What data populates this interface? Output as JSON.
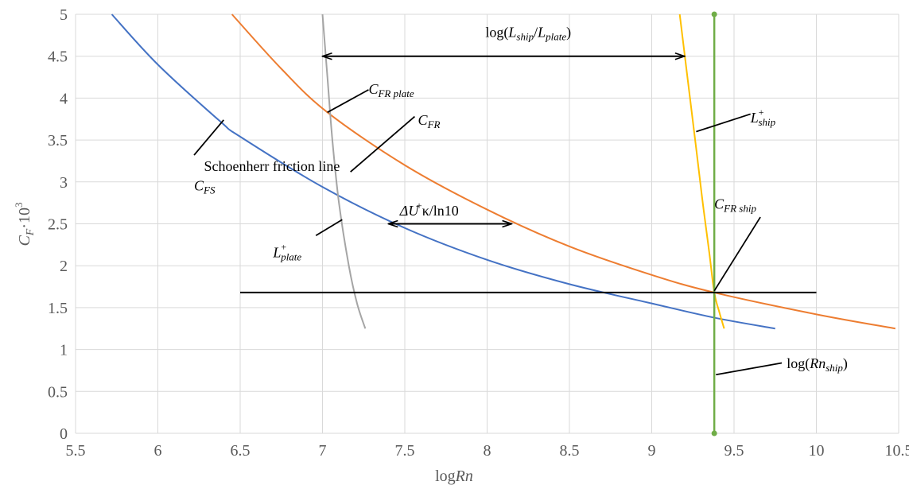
{
  "chart_data": {
    "type": "line",
    "xlabel": "logRn",
    "ylabel": "C_F·10³",
    "xlim": [
      5.5,
      10.5
    ],
    "ylim": [
      0,
      5
    ],
    "xticks": [
      "5.5",
      "6",
      "6.5",
      "7",
      "7.5",
      "8",
      "8.5",
      "9",
      "9.5",
      "10",
      "10.5"
    ],
    "yticks": [
      "0",
      "0.5",
      "1",
      "1.5",
      "2",
      "2.5",
      "3",
      "3.5",
      "4",
      "4.5",
      "5"
    ],
    "grid": true,
    "series": [
      {
        "name": "Schoenherr friction line C_FS",
        "color": "#4472C4",
        "points": [
          [
            5.72,
            5.0
          ],
          [
            6.0,
            4.4
          ],
          [
            6.38,
            3.72
          ],
          [
            6.5,
            3.54
          ],
          [
            7.0,
            2.94
          ],
          [
            7.5,
            2.45
          ],
          [
            8.0,
            2.07
          ],
          [
            8.5,
            1.78
          ],
          [
            9.0,
            1.55
          ],
          [
            9.38,
            1.38
          ],
          [
            9.75,
            1.25
          ]
        ]
      },
      {
        "name": "C_FR",
        "color": "#ED7D31",
        "points": [
          [
            6.45,
            5.0
          ],
          [
            6.75,
            4.35
          ],
          [
            7.03,
            3.83
          ],
          [
            7.5,
            3.2
          ],
          [
            8.0,
            2.67
          ],
          [
            8.5,
            2.23
          ],
          [
            9.0,
            1.89
          ],
          [
            9.38,
            1.68
          ],
          [
            10.0,
            1.42
          ],
          [
            10.48,
            1.25
          ]
        ]
      },
      {
        "name": "L+plate",
        "color": "#A5A5A5",
        "points": [
          [
            7.0,
            5.0
          ],
          [
            7.03,
            4.25
          ],
          [
            7.06,
            3.5
          ],
          [
            7.1,
            2.75
          ],
          [
            7.16,
            2.0
          ],
          [
            7.21,
            1.55
          ],
          [
            7.26,
            1.25
          ]
        ]
      },
      {
        "name": "L+ship",
        "color": "#FFC000",
        "points": [
          [
            9.17,
            5.0
          ],
          [
            9.22,
            4.2
          ],
          [
            9.27,
            3.4
          ],
          [
            9.31,
            2.75
          ],
          [
            9.35,
            2.15
          ],
          [
            9.38,
            1.68
          ],
          [
            9.41,
            1.45
          ],
          [
            9.44,
            1.25
          ]
        ]
      },
      {
        "name": "log(Rn_ship)",
        "color": "#70AD47",
        "points": [
          [
            9.38,
            0.0
          ],
          [
            9.38,
            5.0
          ]
        ]
      }
    ],
    "reference_lines": [
      {
        "name": "C_FR ship level",
        "color": "#000000",
        "points": [
          [
            6.5,
            1.68
          ],
          [
            10.0,
            1.68
          ]
        ]
      }
    ],
    "arrows": [
      {
        "name": "log-length-ratio-arrow",
        "from": [
          7.0,
          4.5
        ],
        "to": [
          9.2,
          4.5
        ]
      },
      {
        "name": "delta-u-arrow",
        "from": [
          7.4,
          2.5
        ],
        "to": [
          8.15,
          2.5
        ]
      }
    ],
    "annotations": [
      {
        "name": "log-length-ratio-label",
        "parts": [
          "log(",
          "L",
          "ship",
          "/",
          "L",
          "plate",
          ")"
        ],
        "at": [
          8.25,
          4.73
        ]
      },
      {
        "name": "cfr-plate-label",
        "parts": [
          "C",
          "FR plate"
        ],
        "at": [
          7.28,
          4.05
        ],
        "leader": [
          [
            7.03,
            3.83
          ],
          [
            7.28,
            4.1
          ]
        ]
      },
      {
        "name": "cfr-label",
        "parts": [
          "C",
          "FR"
        ],
        "at": [
          7.58,
          3.68
        ],
        "leader": [
          [
            7.17,
            3.12
          ],
          [
            7.56,
            3.78
          ]
        ]
      },
      {
        "name": "schoenherr-label",
        "text": "Schoenherr friction line",
        "at": [
          6.28,
          3.13
        ],
        "leader": [
          [
            6.22,
            3.32
          ],
          [
            6.4,
            3.74
          ]
        ]
      },
      {
        "name": "cfs-label",
        "parts": [
          "C",
          "FS"
        ],
        "at": [
          6.22,
          2.9
        ]
      },
      {
        "name": "delta-u-label",
        "parts": [
          "ΔU",
          "+",
          "κ/ln10"
        ],
        "at": [
          7.47,
          2.6
        ]
      },
      {
        "name": "lplate-label",
        "parts": [
          "L",
          "+",
          "plate"
        ],
        "at": [
          6.7,
          2.1
        ],
        "leader": [
          [
            6.96,
            2.36
          ],
          [
            7.12,
            2.55
          ]
        ]
      },
      {
        "name": "lship-label",
        "parts": [
          "L",
          "+",
          "ship"
        ],
        "at": [
          9.6,
          3.71
        ],
        "leader": [
          [
            9.27,
            3.6
          ],
          [
            9.6,
            3.81
          ]
        ]
      },
      {
        "name": "cfr-ship-label",
        "parts": [
          "C",
          "FR ship"
        ],
        "at": [
          9.38,
          2.68
        ],
        "leader": [
          [
            9.38,
            1.7
          ],
          [
            9.66,
            2.58
          ]
        ]
      },
      {
        "name": "log-rn-ship-label",
        "parts": [
          "log(",
          "Rn",
          "ship",
          ")"
        ],
        "at": [
          9.82,
          0.78
        ],
        "leader": [
          [
            9.39,
            0.7
          ],
          [
            9.79,
            0.84
          ]
        ]
      }
    ]
  }
}
